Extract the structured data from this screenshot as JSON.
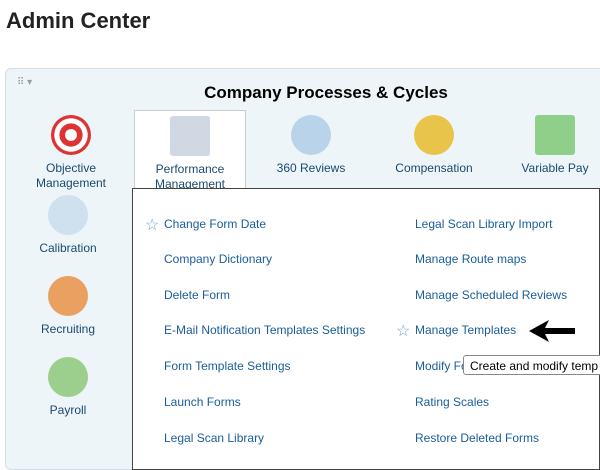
{
  "header": {
    "title": "Admin Center"
  },
  "panel": {
    "title": "Company Processes & Cycles",
    "tiles": [
      {
        "label": "Objective Management"
      },
      {
        "label": "Performance Management"
      },
      {
        "label": "360 Reviews"
      },
      {
        "label": "Compensation"
      },
      {
        "label": "Variable Pay"
      },
      {
        "label": "Calibration"
      },
      {
        "label": "Recruiting"
      },
      {
        "label": "Payroll"
      }
    ]
  },
  "menu": {
    "left": [
      "Change Form Date",
      "Company Dictionary",
      "Delete Form",
      "E-Mail Notification Templates Settings",
      "Form Template Settings",
      "Launch Forms",
      "Legal Scan Library"
    ],
    "right": [
      "Legal Scan Library Import",
      "Manage Route maps",
      "Manage Scheduled Reviews",
      "Manage Templates",
      "Modify Fo",
      "Rating Scales",
      "Restore Deleted Forms"
    ]
  },
  "tooltip": "Create and modify temp"
}
